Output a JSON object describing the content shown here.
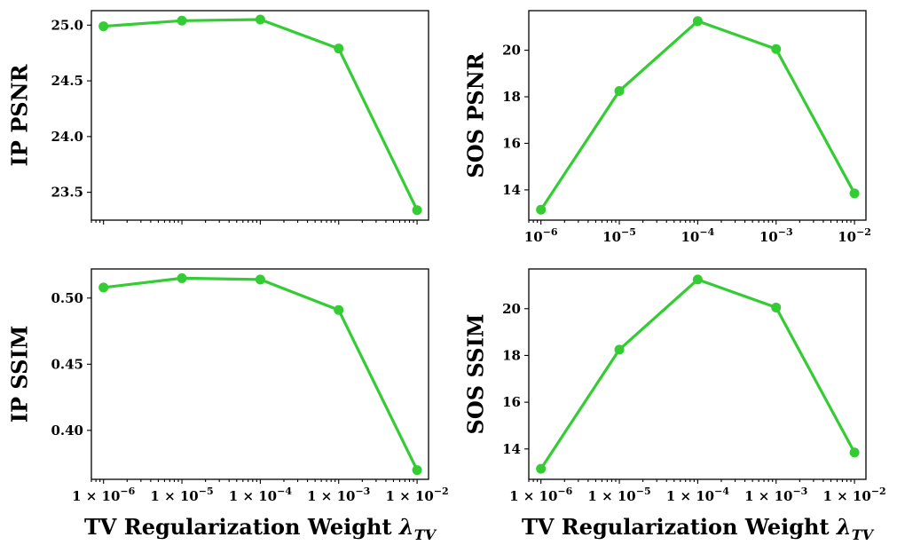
{
  "chart_data": [
    {
      "type": "line",
      "xscale": "log",
      "xlim": [
        7e-07,
        0.014
      ],
      "ylim": [
        23.25,
        25.13
      ],
      "yticks": [
        23.5,
        24.0,
        24.5,
        25.0
      ],
      "ytick_labels": [
        "23.5",
        "24.0",
        "24.5",
        "25.0"
      ],
      "xtick_labels": [],
      "ylabel": "IP PSNR",
      "xlabel": "",
      "color": "#33cc33",
      "x": [
        1e-06,
        1e-05,
        0.0001,
        0.001,
        0.01
      ],
      "y": [
        24.99,
        25.04,
        25.05,
        24.79,
        23.34
      ]
    },
    {
      "type": "line",
      "xscale": "log",
      "xlim": [
        7e-07,
        0.014
      ],
      "ylim": [
        12.7,
        21.7
      ],
      "yticks": [
        14,
        16,
        18,
        20
      ],
      "ytick_labels": [
        "14",
        "16",
        "18",
        "20"
      ],
      "xtick_labels": [
        {
          "base": "10",
          "exp": "−6"
        },
        {
          "base": "10",
          "exp": "−5"
        },
        {
          "base": "10",
          "exp": "−4"
        },
        {
          "base": "10",
          "exp": "−3"
        },
        {
          "base": "10",
          "exp": "−2"
        }
      ],
      "ylabel": "SOS PSNR",
      "xlabel": "",
      "color": "#33cc33",
      "x": [
        1e-06,
        1e-05,
        0.0001,
        0.001,
        0.01
      ],
      "y": [
        13.15,
        18.25,
        21.25,
        20.05,
        13.85
      ]
    },
    {
      "type": "line",
      "xscale": "log",
      "xlim": [
        7e-07,
        0.014
      ],
      "ylim": [
        0.363,
        0.522
      ],
      "yticks": [
        0.4,
        0.45,
        0.5
      ],
      "ytick_labels": [
        "0.40",
        "0.45",
        "0.50"
      ],
      "xtick_labels": [
        {
          "base": "1 × 10",
          "exp": "−6"
        },
        {
          "base": "1 × 10",
          "exp": "−5"
        },
        {
          "base": "1 × 10",
          "exp": "−4"
        },
        {
          "base": "1 × 10",
          "exp": "−3"
        },
        {
          "base": "1 × 10",
          "exp": "−2"
        }
      ],
      "ylabel": "IP SSIM",
      "xlabel": {
        "main": "TV Regularization Weight ",
        "symbol": "λ",
        "sub": "TV"
      },
      "color": "#33cc33",
      "x": [
        1e-06,
        1e-05,
        0.0001,
        0.001,
        0.01
      ],
      "y": [
        0.508,
        0.515,
        0.514,
        0.491,
        0.37
      ]
    },
    {
      "type": "line",
      "xscale": "log",
      "xlim": [
        7e-07,
        0.014
      ],
      "ylim": [
        12.7,
        21.7
      ],
      "yticks": [
        14,
        16,
        18,
        20
      ],
      "ytick_labels": [
        "14",
        "16",
        "18",
        "20"
      ],
      "xtick_labels": [
        {
          "base": "1 × 10",
          "exp": "−6"
        },
        {
          "base": "1 × 10",
          "exp": "−5"
        },
        {
          "base": "1 × 10",
          "exp": "−4"
        },
        {
          "base": "1 × 10",
          "exp": "−3"
        },
        {
          "base": "1 × 10",
          "exp": "−2"
        }
      ],
      "ylabel": "SOS SSIM",
      "xlabel": {
        "main": "TV Regularization Weight ",
        "symbol": "λ",
        "sub": "TV"
      },
      "color": "#33cc33",
      "x": [
        1e-06,
        1e-05,
        0.0001,
        0.001,
        0.01
      ],
      "y": [
        13.15,
        18.25,
        21.25,
        20.05,
        13.85
      ]
    }
  ]
}
